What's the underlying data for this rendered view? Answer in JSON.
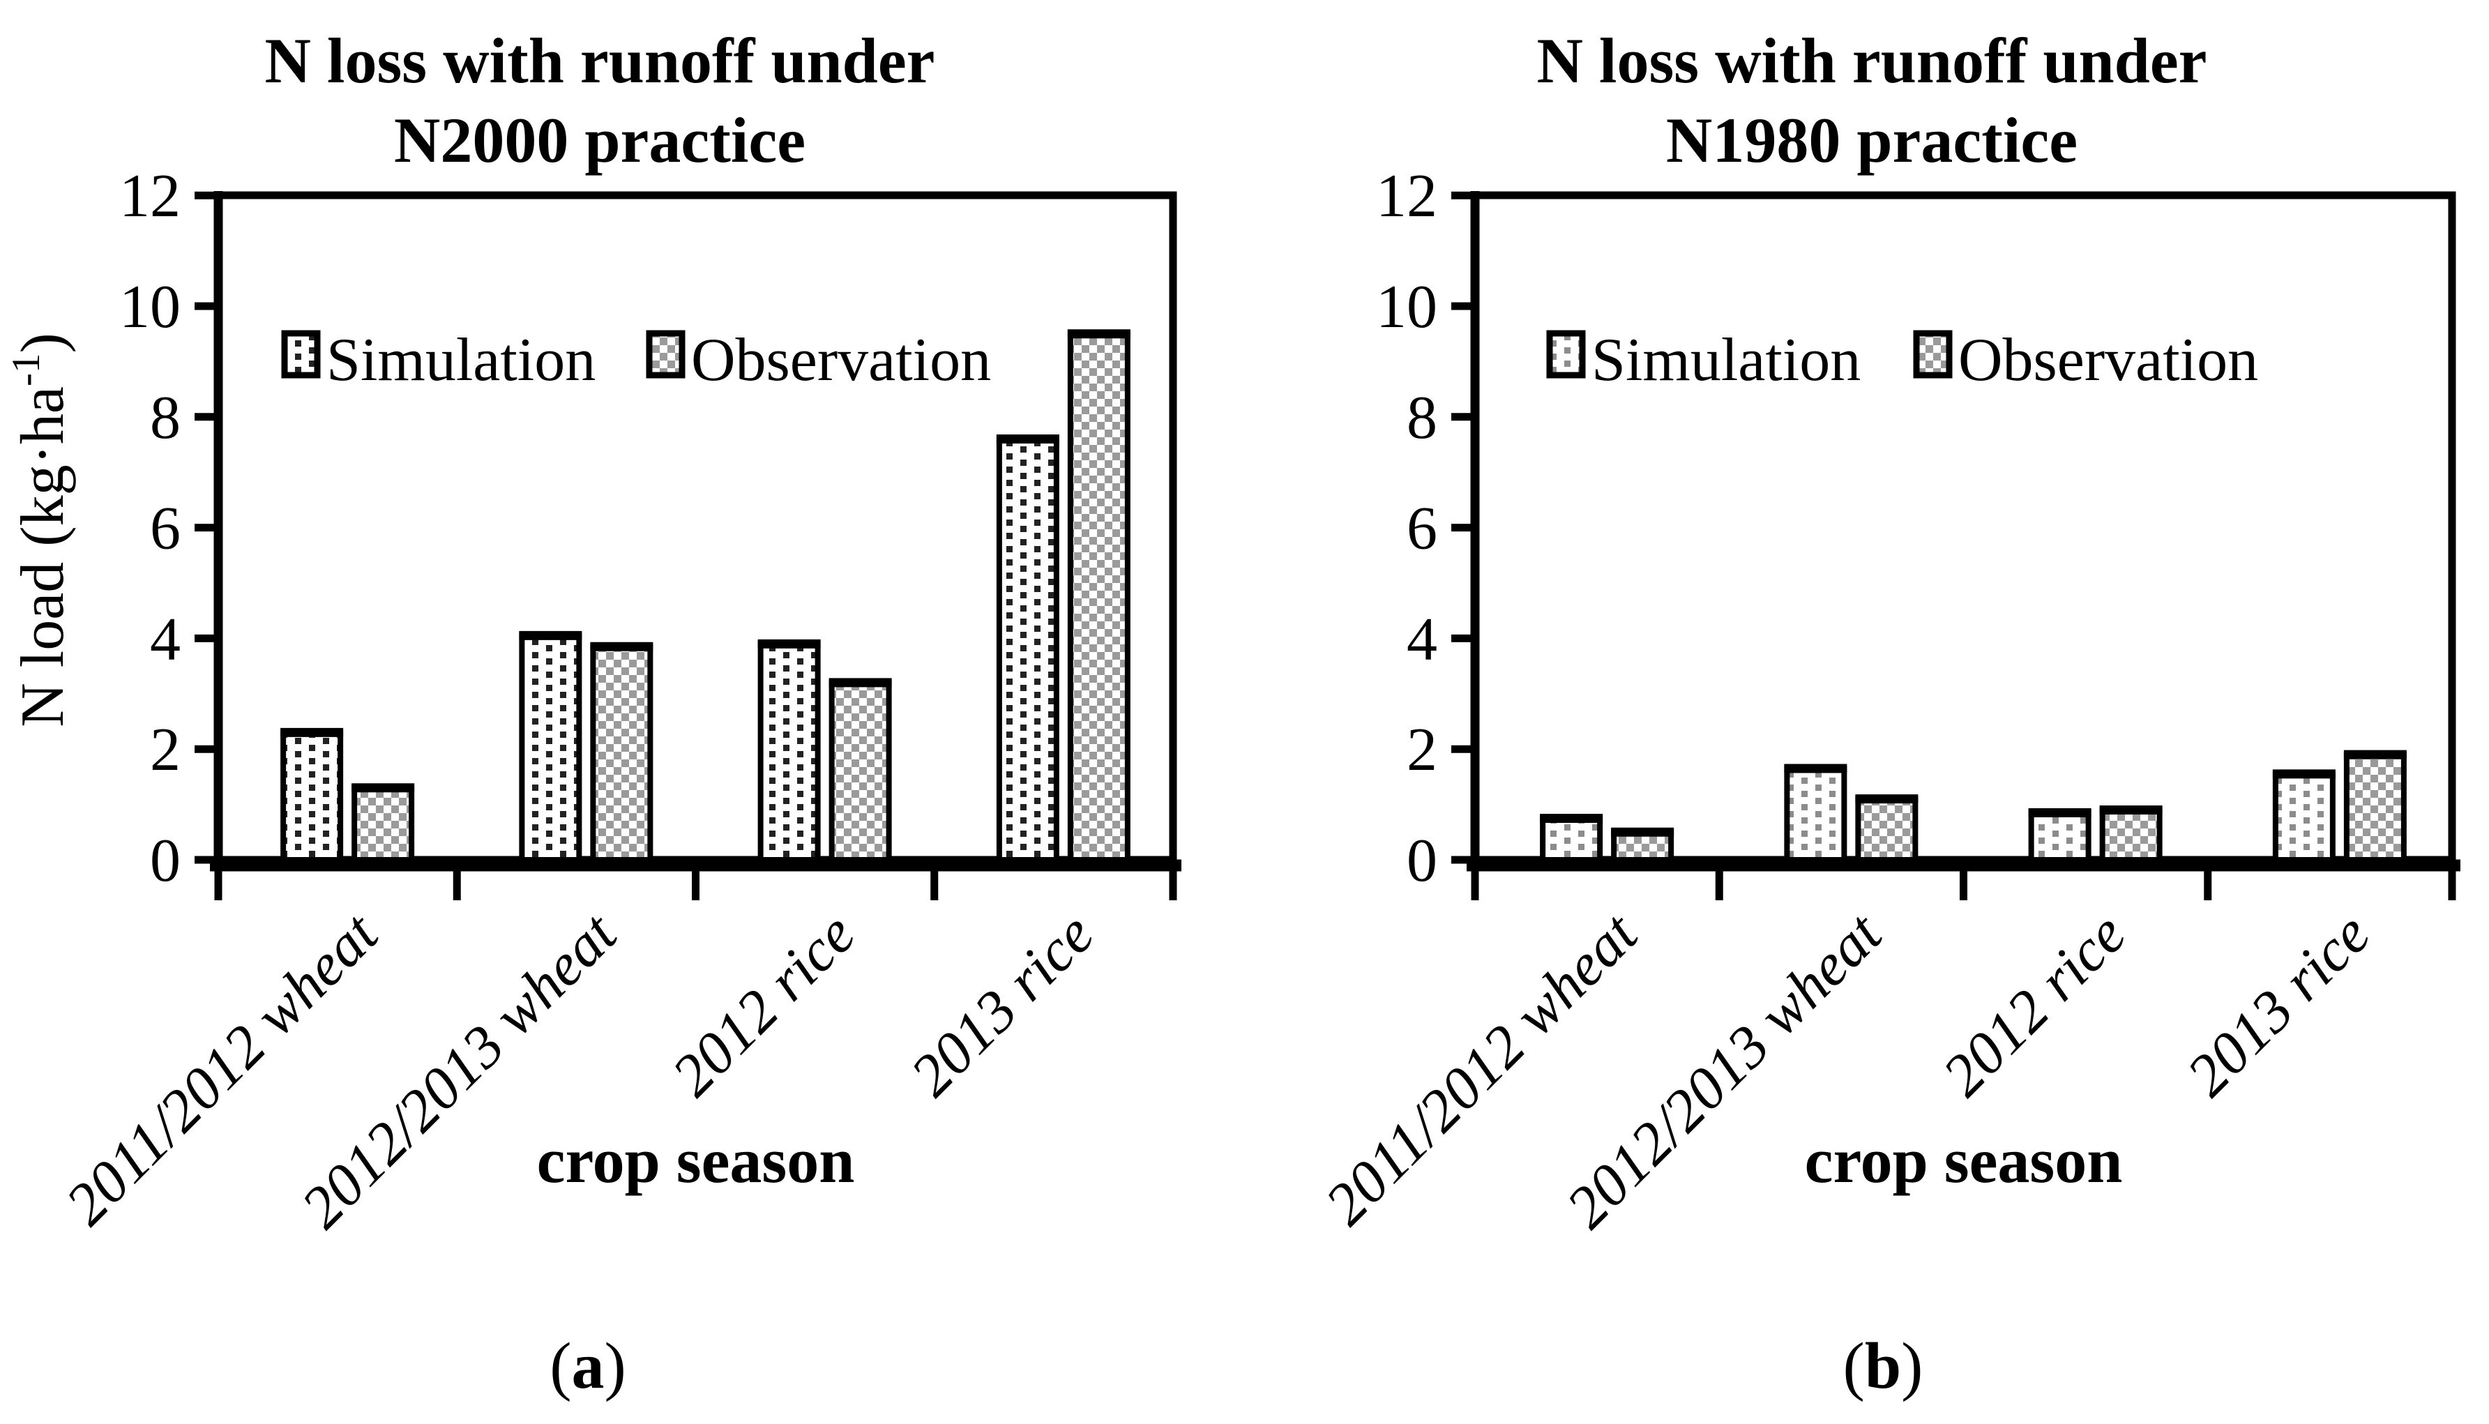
{
  "figure": {
    "background": "#ffffff",
    "panels": [
      {
        "caption": {
          "open": "(",
          "letter": "a",
          "close": ")"
        }
      },
      {
        "caption": {
          "open": "(",
          "letter": "b",
          "close": ")"
        }
      }
    ]
  },
  "chart_data": [
    {
      "type": "bar",
      "title_lines": [
        "N loss with runoff under",
        "N2000 practice"
      ],
      "categories": [
        "2011/2012 wheat",
        "2012/2013 wheat",
        "2012 rice",
        "2013 rice"
      ],
      "series": [
        {
          "name": "Simulation",
          "pattern": "dotted-squares",
          "values": [
            2.3,
            4.05,
            3.9,
            7.6
          ]
        },
        {
          "name": "Observation",
          "pattern": "gray-checkerboard",
          "values": [
            1.3,
            3.85,
            3.2,
            9.5
          ]
        }
      ],
      "xlabel": "crop season",
      "ylabel": {
        "text": "N load (kg·ha",
        "sup": "-1",
        "end": ")"
      },
      "ylim": [
        0,
        12
      ],
      "y_ticks": [
        0,
        2,
        4,
        6,
        8,
        10,
        12
      ],
      "grid": false,
      "legend_position": "top-left-inside"
    },
    {
      "type": "bar",
      "title_lines": [
        "N loss with runoff under",
        "N1980 practice"
      ],
      "categories": [
        "2011/2012 wheat",
        "2012/2013 wheat",
        "2012 rice",
        "2013 rice"
      ],
      "series": [
        {
          "name": "Simulation",
          "pattern": "dotted-squares",
          "values": [
            0.75,
            1.65,
            0.85,
            1.55
          ]
        },
        {
          "name": "Observation",
          "pattern": "gray-checkerboard",
          "values": [
            0.5,
            1.1,
            0.9,
            1.9
          ]
        }
      ],
      "xlabel": "crop season",
      "ylabel": null,
      "ylim": [
        0,
        12
      ],
      "y_ticks": [
        0,
        2,
        4,
        6,
        8,
        10,
        12
      ],
      "grid": false,
      "legend_position": "top-left-inside"
    }
  ],
  "colors": {
    "text": "#000000",
    "axis": "#000000",
    "bar_outline": "#000000",
    "sim_dot_dark": "#222222",
    "sim_dot_gray": "#8c8c8c",
    "obs_gray": "#9a9a9a",
    "background": "#ffffff"
  }
}
